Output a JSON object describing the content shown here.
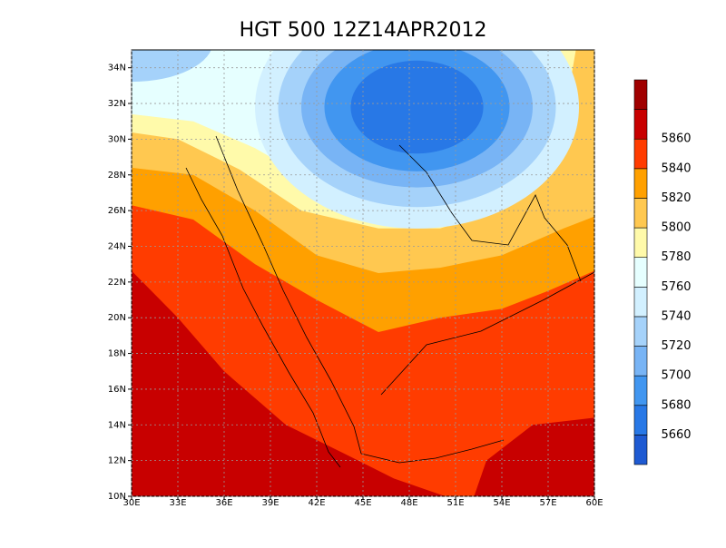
{
  "title": "HGT 500 12Z14APR2012",
  "map": {
    "lonlim": [
      30,
      60
    ],
    "latlim": [
      10,
      35
    ],
    "lon_ticks": [
      {
        "value": 30,
        "label": "30E"
      },
      {
        "value": 33,
        "label": "33E"
      },
      {
        "value": 36,
        "label": "36E"
      },
      {
        "value": 39,
        "label": "39E"
      },
      {
        "value": 42,
        "label": "42E"
      },
      {
        "value": 45,
        "label": "45E"
      },
      {
        "value": 48,
        "label": "48E"
      },
      {
        "value": 51,
        "label": "51E"
      },
      {
        "value": 54,
        "label": "54E"
      },
      {
        "value": 57,
        "label": "57E"
      },
      {
        "value": 60,
        "label": "60E"
      }
    ],
    "lat_ticks": [
      {
        "value": 10,
        "label": "10N"
      },
      {
        "value": 12,
        "label": "12N"
      },
      {
        "value": 14,
        "label": "14N"
      },
      {
        "value": 16,
        "label": "16N"
      },
      {
        "value": 18,
        "label": "18N"
      },
      {
        "value": 20,
        "label": "20N"
      },
      {
        "value": 22,
        "label": "22N"
      },
      {
        "value": 24,
        "label": "24N"
      },
      {
        "value": 26,
        "label": "26N"
      },
      {
        "value": 28,
        "label": "28N"
      },
      {
        "value": 30,
        "label": "30N"
      },
      {
        "value": 32,
        "label": "32N"
      },
      {
        "value": 34,
        "label": "34N"
      }
    ],
    "grid": true
  },
  "colorbar": {
    "levels": [
      5660,
      5680,
      5700,
      5720,
      5740,
      5760,
      5780,
      5800,
      5820,
      5840,
      5860
    ],
    "colors": [
      "#1e5ad2",
      "#2878e6",
      "#4196f0",
      "#78b4f5",
      "#a5d2fa",
      "#d2f0ff",
      "#e6ffff",
      "#fffaaa",
      "#ffc850",
      "#ffa000",
      "#ff3c00",
      "#c80000",
      "#a00000"
    ]
  }
}
